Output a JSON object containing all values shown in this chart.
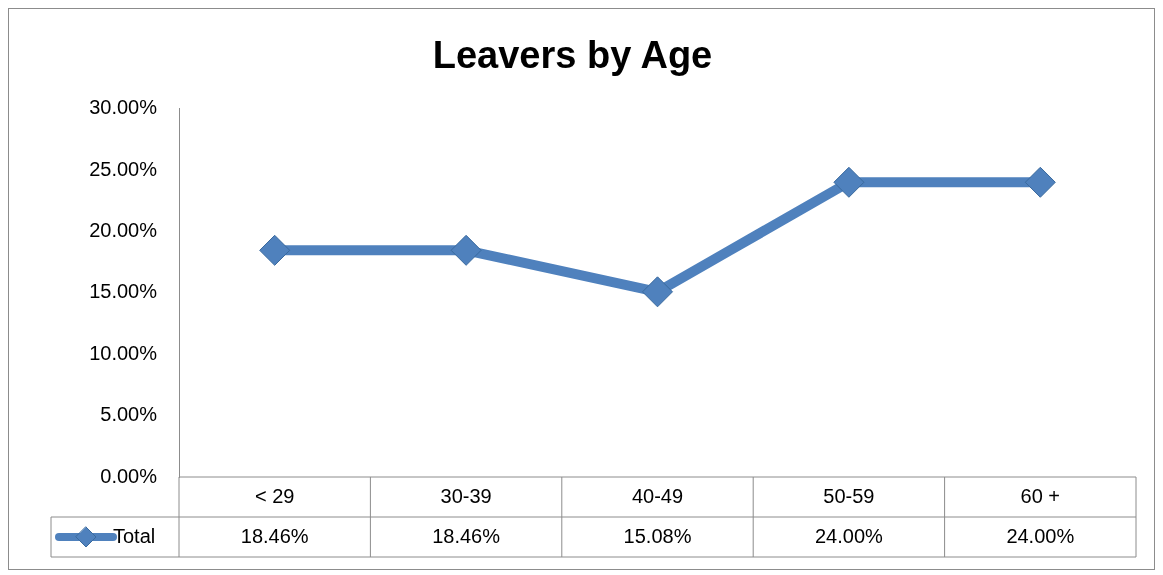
{
  "chart_data": {
    "type": "line",
    "title": "Leavers by Age",
    "categories": [
      "< 29",
      "30-39",
      "40-49",
      "50-59",
      "60 +"
    ],
    "series": [
      {
        "name": "Total",
        "color": "#4f81bd",
        "values": [
          18.46,
          18.46,
          15.08,
          24.0,
          24.0
        ],
        "value_labels": [
          "18.46%",
          "18.46%",
          "15.08%",
          "24.00%",
          "24.00%"
        ]
      }
    ],
    "ylim": [
      0,
      30
    ],
    "yticks": [
      {
        "value": 0,
        "label": "0.00%"
      },
      {
        "value": 5,
        "label": "5.00%"
      },
      {
        "value": 10,
        "label": "10.00%"
      },
      {
        "value": 15,
        "label": "15.00%"
      },
      {
        "value": 20,
        "label": "20.00%"
      },
      {
        "value": 25,
        "label": "25.00%"
      },
      {
        "value": 30,
        "label": "30.00%"
      }
    ],
    "grid": false,
    "legend": "bottom",
    "marker": "diamond",
    "line_style": "solid"
  }
}
